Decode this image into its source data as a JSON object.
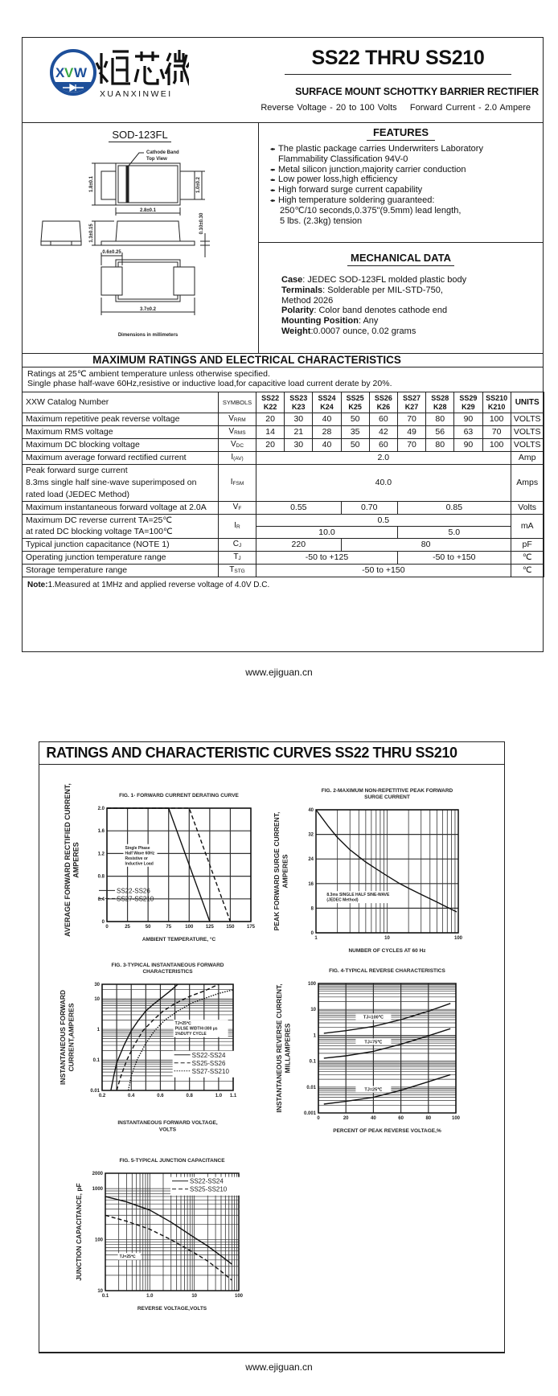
{
  "header": {
    "logo": {
      "mark": "XVW",
      "chinese_name": "烜芯微",
      "english_name": "XUANXINWEI",
      "brand_color": "#1d4f9a",
      "accent_color": "#3aa845"
    },
    "title": "SS22 THRU SS210",
    "subtitle": "SURFACE MOUNT SCHOTTKY BARRIER RECTIFIER",
    "reverse_voltage_label": "Reverse Voltage -",
    "reverse_voltage": "20 to 100 Volts",
    "forward_current_label": "Forward Current -",
    "forward_current": "2.0 Ampere"
  },
  "package": {
    "name": "SOD-123FL",
    "cathode_band": "Cathode Band",
    "top_view": "Top View",
    "dim_height": "1.8±0.1",
    "dim_lead_width": "1.0±0.2",
    "dim_body_length": "2.8±0.1",
    "dim_thickness": "1.3±0.15",
    "dim_lead_thickness": "0.10±0.30",
    "dim_pad": "0.6±0.25",
    "dim_total_length": "3.7±0.2",
    "dimensions_note": "Dimensions in millimeters"
  },
  "features": {
    "title": "FEATURES",
    "items": [
      [
        "The plastic package carries Underwriters Laboratory",
        "Flammability Classification 94V-0"
      ],
      [
        "Metal silicon junction,majority carrier conduction"
      ],
      [
        "Low power loss,high efficiency"
      ],
      [
        "High forward surge current capability"
      ],
      [
        "High temperature soldering guaranteed:",
        "250℃/10 seconds,0.375\"(9.5mm) lead length,",
        "5 lbs. (2.3kg) tension"
      ]
    ]
  },
  "mechanical": {
    "title": "MECHANICAL DATA",
    "case_label": "Case",
    "case": ": JEDEC SOD-123FL molded plastic body",
    "terminals_label": "Terminals",
    "terminals": ": Solderable per MIL-STD-750,",
    "terminals_2": "Method 2026",
    "polarity_label": "Polarity",
    "polarity": ": Color band denotes cathode end",
    "mounting_label": "Mounting Position",
    "mounting": ": Any",
    "weight_label": "Weight",
    "weight": ":0.0007 ounce, 0.02 grams"
  },
  "ratings": {
    "title": "MAXIMUM RATINGS AND ELECTRICAL CHARACTERISTICS",
    "line1": "Ratings at 25℃ ambient temperature unless otherwise specified.",
    "line2": "Single phase half-wave 60Hz,resistive or inductive load,for capacitive load current derate by 20%.",
    "table": {
      "header": {
        "label": "XXW Catalog Number",
        "symbols": "SYMBOLS",
        "parts": [
          [
            "SS22",
            "K22"
          ],
          [
            "SS23",
            "K23"
          ],
          [
            "SS24",
            "K24"
          ],
          [
            "SS25",
            "K25"
          ],
          [
            "SS26",
            "K26"
          ],
          [
            "SS27",
            "K27"
          ],
          [
            "SS28",
            "K28"
          ],
          [
            "SS29",
            "K29"
          ],
          [
            "SS210",
            "K210"
          ]
        ],
        "units": "UNITS"
      },
      "rows": [
        {
          "label": [
            "Maximum repetitive peak reverse voltage"
          ],
          "sym": "V",
          "sub": "RRM",
          "cells": [
            [
              "20",
              1
            ],
            [
              "30",
              1
            ],
            [
              "40",
              1
            ],
            [
              "50",
              1
            ],
            [
              "60",
              1
            ],
            [
              "70",
              1
            ],
            [
              "80",
              1
            ],
            [
              "90",
              1
            ],
            [
              "100",
              1
            ]
          ],
          "unit": "VOLTS"
        },
        {
          "label": [
            "Maximum RMS voltage"
          ],
          "sym": "V",
          "sub": "RMS",
          "cells": [
            [
              "14",
              1
            ],
            [
              "21",
              1
            ],
            [
              "28",
              1
            ],
            [
              "35",
              1
            ],
            [
              "42",
              1
            ],
            [
              "49",
              1
            ],
            [
              "56",
              1
            ],
            [
              "63",
              1
            ],
            [
              "70",
              1
            ]
          ],
          "unit": "VOLTS"
        },
        {
          "label": [
            "Maximum DC blocking voltage"
          ],
          "sym": "V",
          "sub": "DC",
          "cells": [
            [
              "20",
              1
            ],
            [
              "30",
              1
            ],
            [
              "40",
              1
            ],
            [
              "50",
              1
            ],
            [
              "60",
              1
            ],
            [
              "70",
              1
            ],
            [
              "80",
              1
            ],
            [
              "90",
              1
            ],
            [
              "100",
              1
            ]
          ],
          "unit": "VOLTS"
        },
        {
          "label": [
            "Maximum average forward rectified current"
          ],
          "sym": "I",
          "sub": "(AV)",
          "cells": [
            [
              "2.0",
              9
            ]
          ],
          "unit": "Amp"
        },
        {
          "label": [
            "Peak forward surge current",
            "8.3ms single half sine-wave superimposed on",
            "rated load (JEDEC Method)"
          ],
          "sym": "I",
          "sub": "FSM",
          "cells": [
            [
              "40.0",
              9
            ]
          ],
          "unit": "Amps"
        },
        {
          "label": [
            "Maximum instantaneous forward voltage at 2.0A"
          ],
          "sym": "V",
          "sub": "F",
          "cells": [
            [
              "0.55",
              3
            ],
            [
              "0.70",
              2
            ],
            [
              "0.85",
              4
            ]
          ],
          "unit": "Volts"
        },
        {
          "label": [
            "Maximum DC reverse current      TA=25℃"
          ],
          "sym": "I",
          "sub": "R",
          "cells": [
            [
              "0.5",
              9
            ]
          ],
          "unit": "mA",
          "rowspan": 2
        },
        {
          "label": [
            "at rated DC blocking voltage      TA=100℃"
          ],
          "cells": [
            [
              "10.0",
              5
            ],
            [
              "5.0",
              4
            ]
          ],
          "continued": true
        },
        {
          "label": [
            "Typical junction capacitance (NOTE 1)"
          ],
          "sym": "C",
          "sub": "J",
          "cells": [
            [
              "220",
              3
            ],
            [
              "80",
              6
            ]
          ],
          "unit": "pF"
        },
        {
          "label": [
            "Operating junction temperature range"
          ],
          "sym": "T",
          "sub": "J",
          "cells": [
            [
              "-50 to +125",
              5
            ],
            [
              "-50 to +150",
              4
            ]
          ],
          "unit": "℃"
        },
        {
          "label": [
            "Storage temperature range"
          ],
          "sym": "T",
          "sub": "STG",
          "cells": [
            [
              "-50 to +150",
              9
            ]
          ],
          "unit": "℃"
        }
      ]
    },
    "note_label": "Note:",
    "note": "1.Measured at 1MHz and applied reverse voltage of 4.0V D.C."
  },
  "footer": {
    "url": "www.ejiguan.cn"
  },
  "curves_title": "RATINGS AND CHARACTERISTIC CURVES SS22 THRU SS210",
  "chart_data": [
    {
      "type": "line",
      "title": [
        "FIG. 1- FORWARD CURRENT DERATING CURVE"
      ],
      "xlabel": [
        "AMBIENT TEMPERATURE, °C"
      ],
      "ylabel": [
        "AVERAGE FORWARD RECTIFIED CURRENT,",
        "AMPERES"
      ],
      "x_scale": "linear",
      "y_scale": "linear",
      "xlim": [
        0,
        175
      ],
      "ylim": [
        0,
        2.0
      ],
      "x_ticks": [
        "0",
        "25",
        "50",
        "75",
        "100",
        "125",
        "150",
        "175"
      ],
      "y_ticks": [
        "0",
        "0.4",
        "0.8",
        "1.2",
        "1.6",
        "2.0"
      ],
      "grid": true,
      "annotation": [
        "Single Phase",
        "Half Wave 60Hz",
        "Resistive or",
        "Inductive Load"
      ],
      "legend_placement": "bottom-left",
      "series": [
        {
          "name": "SS22-SS26",
          "style": "solid",
          "x": [
            0,
            75,
            125
          ],
          "y": [
            2.0,
            2.0,
            0
          ]
        },
        {
          "name": "SS27-SS210",
          "style": "dashed",
          "x": [
            0,
            100,
            150
          ],
          "y": [
            2.0,
            2.0,
            0
          ]
        }
      ]
    },
    {
      "type": "line",
      "title": [
        "FIG. 2-MAXIMUM NON-REPETITIVE PEAK FORWARD",
        "SURGE CURRENT"
      ],
      "xlabel": [
        "NUMBER OF CYCLES AT 60 Hz"
      ],
      "ylabel": [
        "PEAK  FORWARD SURGE CURRENT,",
        "AMPERES"
      ],
      "x_scale": "log",
      "y_scale": "linear",
      "xlim": [
        1,
        100
      ],
      "ylim": [
        0,
        40
      ],
      "x_ticks": [
        "1",
        "10",
        "100"
      ],
      "y_ticks": [
        "0",
        "8",
        "16",
        "24",
        "32",
        "40"
      ],
      "grid": true,
      "annotation": [
        "8.3ms SINGLE HALF SINE-WAVE",
        "(JEDEC Method)"
      ],
      "series": [
        {
          "style": "solid",
          "x": [
            1,
            1.5,
            2,
            3,
            5,
            7,
            10,
            15,
            20,
            30,
            50,
            70,
            95
          ],
          "y": [
            40,
            34.5,
            31,
            27,
            23,
            20.8,
            18.5,
            16,
            14.5,
            12.5,
            10,
            8.3,
            6.8
          ]
        }
      ]
    },
    {
      "type": "line",
      "title": [
        "FIG. 3-TYPICAL INSTANTANEOUS FORWARD",
        "CHARACTERISTICS"
      ],
      "xlabel": [
        "INSTANTANEOUS FORWARD VOLTAGE,",
        "VOLTS"
      ],
      "ylabel": [
        "INSTANTANEOUS FORWARD",
        "CURRENT,AMPERES"
      ],
      "x_scale": "linear",
      "y_scale": "log",
      "xlim": [
        0.2,
        1.1
      ],
      "ylim": [
        0.01,
        30
      ],
      "x_ticks": [
        "0.2",
        "0.4",
        "0.6",
        "0.8",
        "1.0",
        "1.1"
      ],
      "y_ticks": [
        "0.01",
        "0.1",
        "1",
        "10",
        "30"
      ],
      "grid": true,
      "annotation": [
        "TJ=25℃",
        "PULSE WIDTH=300 μs",
        "1%DUTY CYCLE"
      ],
      "legend_placement": "bottom-right",
      "series": [
        {
          "name": "SS22-SS24",
          "style": "solid",
          "x": [
            0.26,
            0.28,
            0.3,
            0.35,
            0.4,
            0.45,
            0.5,
            0.55,
            0.6,
            0.66,
            0.72
          ],
          "y": [
            0.01,
            0.03,
            0.08,
            0.3,
            0.9,
            2,
            4,
            6.5,
            10,
            17,
            30
          ]
        },
        {
          "name": "SS25-SS26",
          "style": "dashed",
          "x": [
            0.3,
            0.33,
            0.37,
            0.42,
            0.48,
            0.55,
            0.62,
            0.7,
            0.8,
            0.9,
            1.0
          ],
          "y": [
            0.01,
            0.03,
            0.1,
            0.3,
            0.9,
            2,
            4,
            7,
            12,
            18,
            30
          ]
        },
        {
          "name": "SS27-SS210",
          "style": "dotted",
          "x": [
            0.38,
            0.4,
            0.44,
            0.5,
            0.56,
            0.63,
            0.72,
            0.82,
            0.92,
            1.0,
            1.1
          ],
          "y": [
            0.01,
            0.03,
            0.1,
            0.35,
            0.9,
            2,
            4,
            7.5,
            11,
            15,
            20
          ]
        }
      ]
    },
    {
      "type": "line",
      "title": [
        "FIG. 4-TYPICAL REVERSE CHARACTERISTICS"
      ],
      "xlabel": [
        "PERCENT OF PEAK REVERSE VOLTAGE,%"
      ],
      "ylabel": [
        "INSTANTANEOUS REVERSE CURRENT,",
        "MILLAMPERES"
      ],
      "x_scale": "linear",
      "y_scale": "log",
      "xlim": [
        0,
        100
      ],
      "ylim": [
        0.001,
        100
      ],
      "x_ticks": [
        "0",
        "20",
        "40",
        "60",
        "80",
        "100"
      ],
      "y_ticks": [
        "0.001",
        "0.01",
        "0.1",
        "1",
        "10",
        "100"
      ],
      "grid": true,
      "series": [
        {
          "name": "TJ=100℃",
          "style": "solid",
          "x": [
            4,
            20,
            40,
            60,
            80,
            96
          ],
          "y": [
            1.2,
            1.5,
            2.2,
            4,
            8.5,
            17
          ]
        },
        {
          "name": "TJ=75℃",
          "style": "solid",
          "x": [
            4,
            20,
            40,
            60,
            80,
            96
          ],
          "y": [
            0.13,
            0.16,
            0.24,
            0.45,
            0.95,
            1.8
          ]
        },
        {
          "name": "TJ=25℃",
          "style": "solid",
          "x": [
            4,
            20,
            40,
            60,
            80,
            96
          ],
          "y": [
            0.0022,
            0.0028,
            0.004,
            0.0075,
            0.016,
            0.03
          ]
        }
      ]
    },
    {
      "type": "line",
      "title": [
        "FIG. 5-TYPICAL JUNCTION CAPACITANCE"
      ],
      "xlabel": [
        "REVERSE VOLTAGE,VOLTS"
      ],
      "ylabel": [
        "JUNCTION CAPACITANCE, pF"
      ],
      "x_scale": "log",
      "y_scale": "log",
      "xlim": [
        0.1,
        100
      ],
      "ylim": [
        10,
        2000
      ],
      "x_ticks": [
        "0.1",
        "1.0",
        "10",
        "100"
      ],
      "y_ticks": [
        "10",
        "100",
        "1000",
        "2000"
      ],
      "grid": true,
      "annotation": [
        "TJ=25℃"
      ],
      "legend_placement": "top-right",
      "series": [
        {
          "name": "SS22-SS24",
          "style": "solid",
          "x": [
            0.1,
            0.3,
            1,
            3,
            10,
            20,
            40,
            70
          ],
          "y": [
            700,
            550,
            380,
            220,
            110,
            75,
            48,
            33
          ]
        },
        {
          "name": "SS25-SS210",
          "style": "dashed",
          "x": [
            0.1,
            0.3,
            1,
            3,
            10,
            20,
            40,
            70
          ],
          "y": [
            300,
            230,
            160,
            100,
            55,
            38,
            24,
            16
          ]
        }
      ]
    }
  ]
}
